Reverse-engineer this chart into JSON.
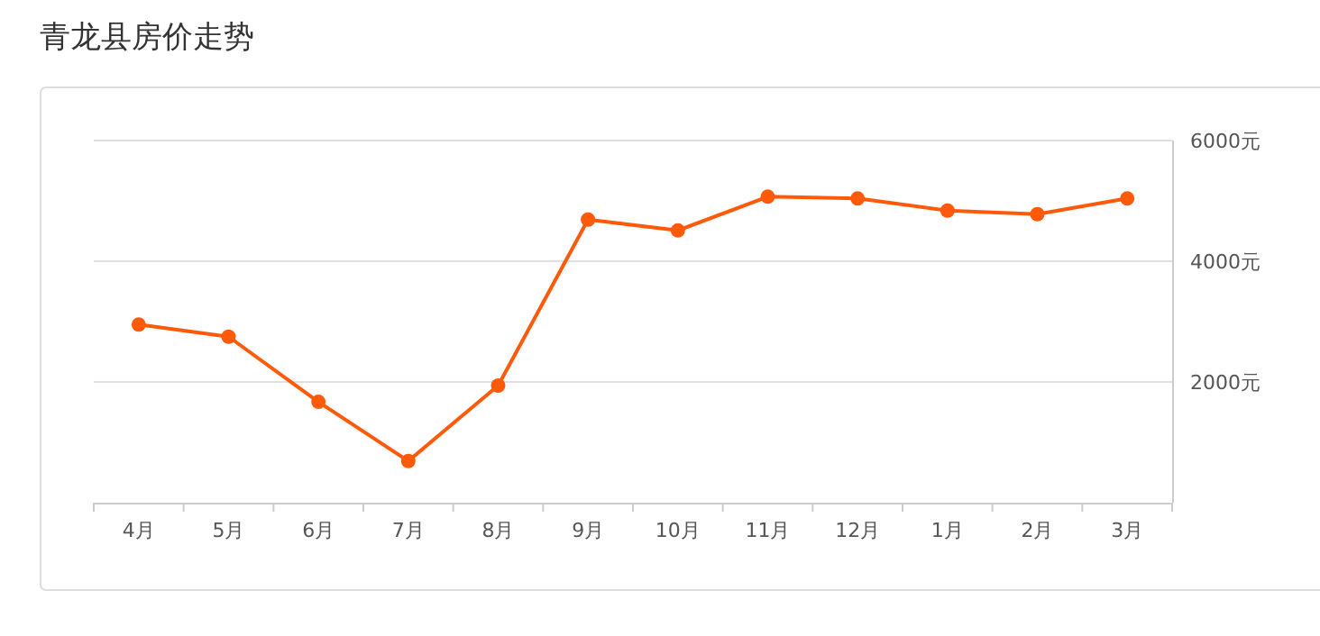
{
  "chart_data": {
    "type": "line",
    "title": "青龙县房价走势",
    "categories": [
      "4月",
      "5月",
      "6月",
      "7月",
      "8月",
      "9月",
      "10月",
      "11月",
      "12月",
      "1月",
      "2月",
      "3月"
    ],
    "series": [
      {
        "color": "#ff5a0a",
        "values": [
          2950,
          2750,
          1670,
          690,
          1940,
          4690,
          4510,
          5070,
          5040,
          4840,
          4780,
          5040
        ]
      }
    ],
    "ylim": [
      0,
      6000
    ],
    "yticks": [
      {
        "value": 2000,
        "label": "2000元"
      },
      {
        "value": 4000,
        "label": "4000元"
      },
      {
        "value": 6000,
        "label": "6000元"
      }
    ],
    "grid": "y",
    "marker": "circle",
    "line_style": "solid"
  }
}
